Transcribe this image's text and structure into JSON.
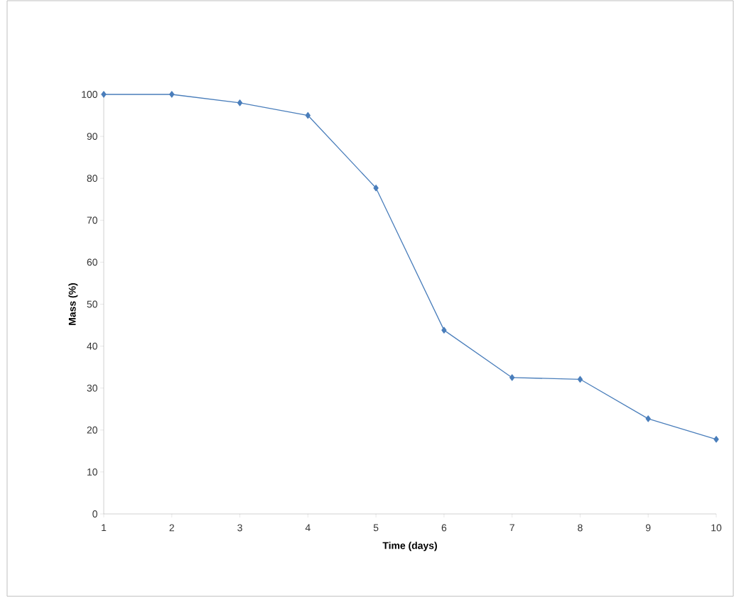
{
  "chart_data": {
    "type": "line",
    "xlabel": "Time (days)",
    "ylabel": "Mass (%)",
    "x": [
      1,
      2,
      3,
      4,
      5,
      6,
      7,
      8,
      9,
      10
    ],
    "series": [
      {
        "color": "#4a7ebb",
        "values": [
          100,
          100,
          98,
          95,
          77.7,
          43.8,
          32.5,
          32.1,
          22.7,
          17.8
        ]
      }
    ],
    "xlim": [
      1,
      10
    ],
    "xticks": [
      1,
      2,
      3,
      4,
      5,
      6,
      7,
      8,
      9,
      10
    ],
    "ylim": [
      0,
      100
    ],
    "yticks": [
      0,
      10,
      20,
      30,
      40,
      50,
      60,
      70,
      80,
      90,
      100
    ],
    "marker": "diamond",
    "line_style": "solid",
    "grid": false
  }
}
